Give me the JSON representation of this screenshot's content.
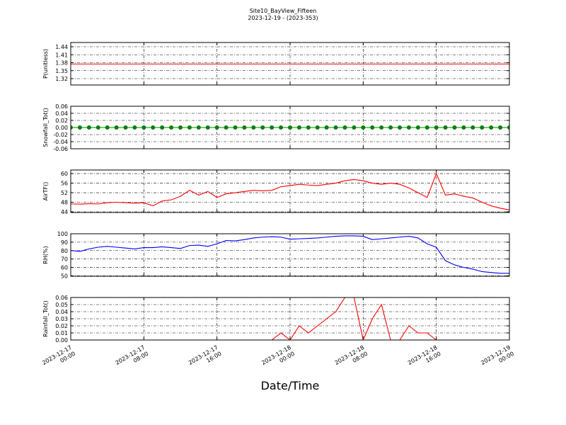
{
  "title": "Site10_BayView_Fifteen",
  "subtitle": "2023-12-19 - (2023-353)",
  "xlabel": "Date/Time",
  "xlim": [
    "2023-12-17 00:00",
    "2023-12-19 00:00"
  ],
  "xticks": [
    "2023-12-17 00:00",
    "2023-12-17 08:00",
    "2023-12-17 16:00",
    "2023-12-18 00:00",
    "2023-12-18 08:00",
    "2023-12-18 16:00",
    "2023-12-19 00:00"
  ],
  "x": [
    "2023-12-17 00:00",
    "2023-12-17 01:00",
    "2023-12-17 02:00",
    "2023-12-17 03:00",
    "2023-12-17 04:00",
    "2023-12-17 05:00",
    "2023-12-17 06:00",
    "2023-12-17 07:00",
    "2023-12-17 08:00",
    "2023-12-17 09:00",
    "2023-12-17 10:00",
    "2023-12-17 11:00",
    "2023-12-17 12:00",
    "2023-12-17 13:00",
    "2023-12-17 14:00",
    "2023-12-17 15:00",
    "2023-12-17 16:00",
    "2023-12-17 17:00",
    "2023-12-17 18:00",
    "2023-12-17 19:00",
    "2023-12-17 20:00",
    "2023-12-17 21:00",
    "2023-12-17 22:00",
    "2023-12-17 23:00",
    "2023-12-18 00:00",
    "2023-12-18 01:00",
    "2023-12-18 02:00",
    "2023-12-18 03:00",
    "2023-12-18 04:00",
    "2023-12-18 05:00",
    "2023-12-18 06:00",
    "2023-12-18 07:00",
    "2023-12-18 08:00",
    "2023-12-18 09:00",
    "2023-12-18 10:00",
    "2023-12-18 11:00",
    "2023-12-18 12:00",
    "2023-12-18 13:00",
    "2023-12-18 14:00",
    "2023-12-18 15:00",
    "2023-12-18 16:00",
    "2023-12-18 17:00",
    "2023-12-18 18:00",
    "2023-12-18 19:00",
    "2023-12-18 20:00",
    "2023-12-18 21:00",
    "2023-12-18 22:00",
    "2023-12-18 23:00",
    "2023-12-19 00:00"
  ],
  "chart_data": [
    {
      "type": "line",
      "ylabel": "P(unitless)",
      "color": "#ff0000",
      "grid": true,
      "ylim": [
        1.296,
        1.456
      ],
      "yticks": [
        1.32,
        1.35,
        1.38,
        1.41,
        1.44
      ],
      "values": [
        1.375,
        1.375,
        1.375,
        1.375,
        1.375,
        1.375,
        1.375,
        1.375,
        1.375,
        1.375,
        1.375,
        1.375,
        1.375,
        1.375,
        1.375,
        1.375,
        1.375,
        1.375,
        1.375,
        1.375,
        1.375,
        1.375,
        1.375,
        1.375,
        1.375,
        1.375,
        1.375,
        1.375,
        1.375,
        1.375,
        1.375,
        1.375,
        1.375,
        1.375,
        1.375,
        1.375,
        1.375,
        1.375,
        1.375,
        1.375,
        1.375,
        1.375,
        1.375,
        1.375,
        1.375,
        1.375,
        1.375,
        1.375,
        1.375
      ]
    },
    {
      "type": "line",
      "ylabel": "Snowfall_Tot()",
      "color": "#008000",
      "grid": true,
      "marker": true,
      "ylim": [
        -0.06,
        0.06
      ],
      "yticks": [
        -0.06,
        -0.04,
        -0.02,
        {
          "value": 0,
          "label": "0.00"
        },
        0.02,
        0.04,
        0.06
      ],
      "values": [
        0,
        0,
        0,
        0,
        0,
        0,
        0,
        0,
        0,
        0,
        0,
        0,
        0,
        0,
        0,
        0,
        0,
        0,
        0,
        0,
        0,
        0,
        0,
        0,
        0,
        0,
        0,
        0,
        0,
        0,
        0,
        0,
        0,
        0,
        0,
        0,
        0,
        0,
        0,
        0,
        0,
        0,
        0,
        0,
        0,
        0,
        0,
        0,
        0
      ]
    },
    {
      "type": "line",
      "ylabel": "AirTF()",
      "color": "#ff0000",
      "grid": true,
      "ylim": [
        43.7,
        61.5
      ],
      "yticks": [
        44,
        48,
        52,
        56,
        60
      ],
      "values": [
        47.3,
        47.2,
        47.4,
        47.3,
        47.8,
        48,
        47.8,
        47.6,
        47.8,
        46.5,
        48.5,
        49,
        50.5,
        53,
        51,
        52.5,
        50,
        51.5,
        52,
        52.5,
        53,
        52.8,
        53,
        54.5,
        55,
        55.5,
        55.2,
        55,
        55.5,
        56,
        57,
        57.5,
        57,
        56,
        55.5,
        56,
        55.5,
        54,
        52,
        50,
        60,
        51,
        51.5,
        50.5,
        49.8,
        48,
        46.5,
        45.5,
        44.8
      ]
    },
    {
      "type": "line",
      "ylabel": "RH(%)",
      "color": "#0000ff",
      "grid": true,
      "ylim": [
        49.5,
        100
      ],
      "yticks": [
        50,
        60,
        70,
        80,
        90,
        100
      ],
      "values": [
        80,
        79,
        82,
        84,
        85,
        84,
        83,
        82,
        83.5,
        83.5,
        84.5,
        83.5,
        82.5,
        86,
        86.5,
        85,
        88,
        92,
        91.5,
        93,
        95,
        96,
        96.5,
        96,
        93.5,
        94,
        94.5,
        95,
        96,
        97,
        97.5,
        97.5,
        97,
        93,
        94,
        95,
        96,
        97,
        95,
        88,
        84,
        68,
        63,
        60,
        58,
        55,
        54,
        53,
        53
      ]
    },
    {
      "type": "line",
      "ylabel": "Rainfall_Tot()",
      "color": "#ff0000",
      "grid": true,
      "ylim": [
        0,
        0.06
      ],
      "yticks": [
        {
          "value": 0,
          "label": "0.00"
        },
        0.01,
        0.02,
        0.03,
        0.04,
        0.05,
        0.06
      ],
      "values": [
        0,
        0,
        0,
        0,
        0,
        0,
        0,
        0,
        0,
        0,
        0,
        0,
        0,
        0,
        0,
        0,
        0,
        0,
        0,
        0,
        0,
        0,
        0,
        0.01,
        0,
        0.02,
        0.01,
        0.02,
        0.03,
        0.04,
        0.06,
        0.06,
        0,
        0.03,
        0.05,
        0,
        0,
        0.02,
        0.01,
        0.01,
        0,
        0,
        0,
        0,
        0,
        0,
        0,
        0,
        0
      ]
    }
  ]
}
